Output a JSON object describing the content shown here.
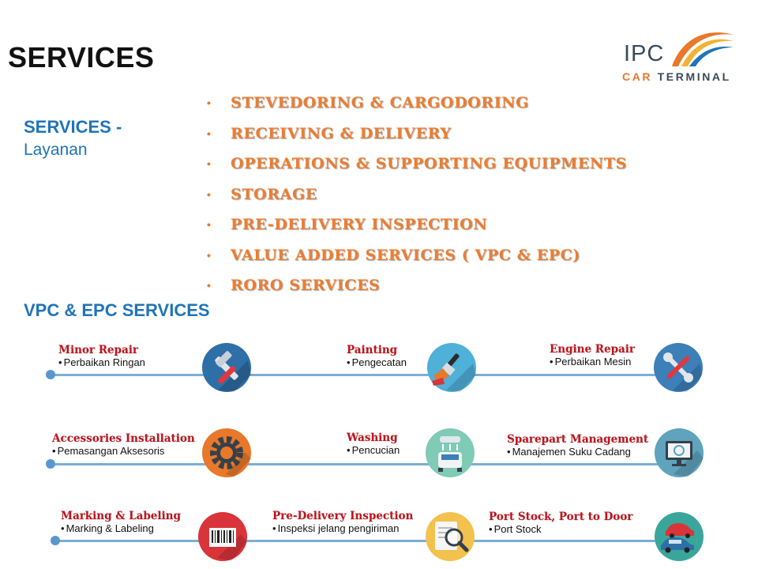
{
  "slide": {
    "title": "SERVICES",
    "logo": {
      "brand": "IPC",
      "sub_car": "CAR",
      "sub_terminal": "TERMINAL"
    },
    "services_heading": "SERVICES -",
    "services_subheading": "Layanan",
    "services_list": [
      "STEVEDORING & CARGODORING",
      "RECEIVING & DELIVERY",
      "OPERATIONS & SUPPORTING EQUIPMENTS",
      "STORAGE",
      "PRE-DELIVERY INSPECTION",
      "VALUE ADDED SERVICES ( VPC & EPC)",
      "RORO SERVICES"
    ],
    "vpc_heading": "VPC & EPC SERVICES",
    "vpc_items": [
      {
        "title": "Minor Repair",
        "subtitle": "Perbaikan Ringan",
        "icon": "hammer-screwdriver-icon",
        "color": "#2f6fa8"
      },
      {
        "title": "Painting",
        "subtitle": "Pengecatan",
        "icon": "paint-brush-icon",
        "color": "#4fb0d8"
      },
      {
        "title": "Engine Repair",
        "subtitle": "Perbaikan Mesin",
        "icon": "wrench-screwdriver-icon",
        "color": "#3d7fb8"
      },
      {
        "title": "Accessories Installation",
        "subtitle": "Pemasangan Aksesoris",
        "icon": "gear-icon",
        "color": "#e8782a"
      },
      {
        "title": "Washing",
        "subtitle": "Pencucian",
        "icon": "car-wash-icon",
        "color": "#7fcbb5"
      },
      {
        "title": "Sparepart Management",
        "subtitle": "Manajemen Suku Cadang",
        "icon": "monitor-icon",
        "color": "#5fa3bd"
      },
      {
        "title": "Marking & Labeling",
        "subtitle": "Marking & Labeling",
        "icon": "barcode-icon",
        "color": "#d9343a"
      },
      {
        "title": "Pre-Delivery Inspection",
        "subtitle": "Inspeksi jelang pengiriman",
        "icon": "magnifier-icon",
        "color": "#f2c14e"
      },
      {
        "title": "Port Stock, Port to Door",
        "subtitle": "Port Stock",
        "icon": "cars-icon",
        "color": "#3aa69b"
      }
    ]
  }
}
